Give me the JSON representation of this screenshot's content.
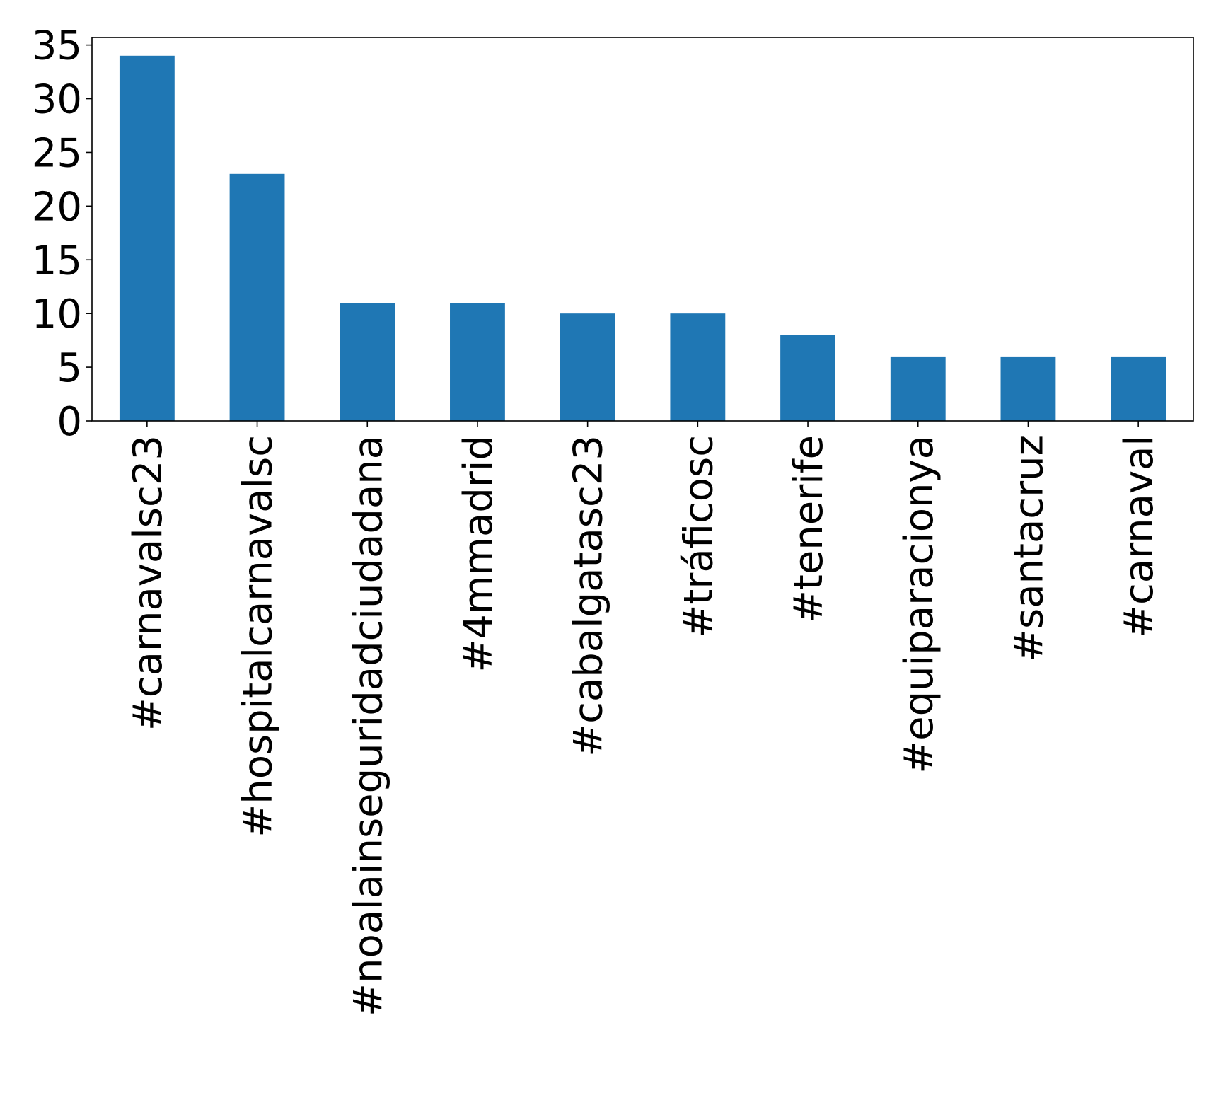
{
  "chart_data": {
    "type": "bar",
    "title": "",
    "xlabel": "",
    "ylabel": "",
    "categories": [
      "#carnavalsc23",
      "#hospitalcarnavalsc",
      "#noalainseguridadciudadana",
      "#4mmadrid",
      "#cabalgatasc23",
      "#tráficosc",
      "#tenerife",
      "#equiparacionya",
      "#santacruz",
      "#carnaval"
    ],
    "values": [
      34,
      23,
      11,
      11,
      10,
      10,
      8,
      6,
      6,
      6
    ],
    "ylim": [
      0,
      35.7
    ],
    "yticks": [
      0,
      5,
      10,
      15,
      20,
      25,
      30,
      35
    ],
    "ytick_labels": [
      "0",
      "5",
      "10",
      "15",
      "20",
      "25",
      "30",
      "35"
    ],
    "grid": false,
    "bar_color": "#1f77b4"
  }
}
